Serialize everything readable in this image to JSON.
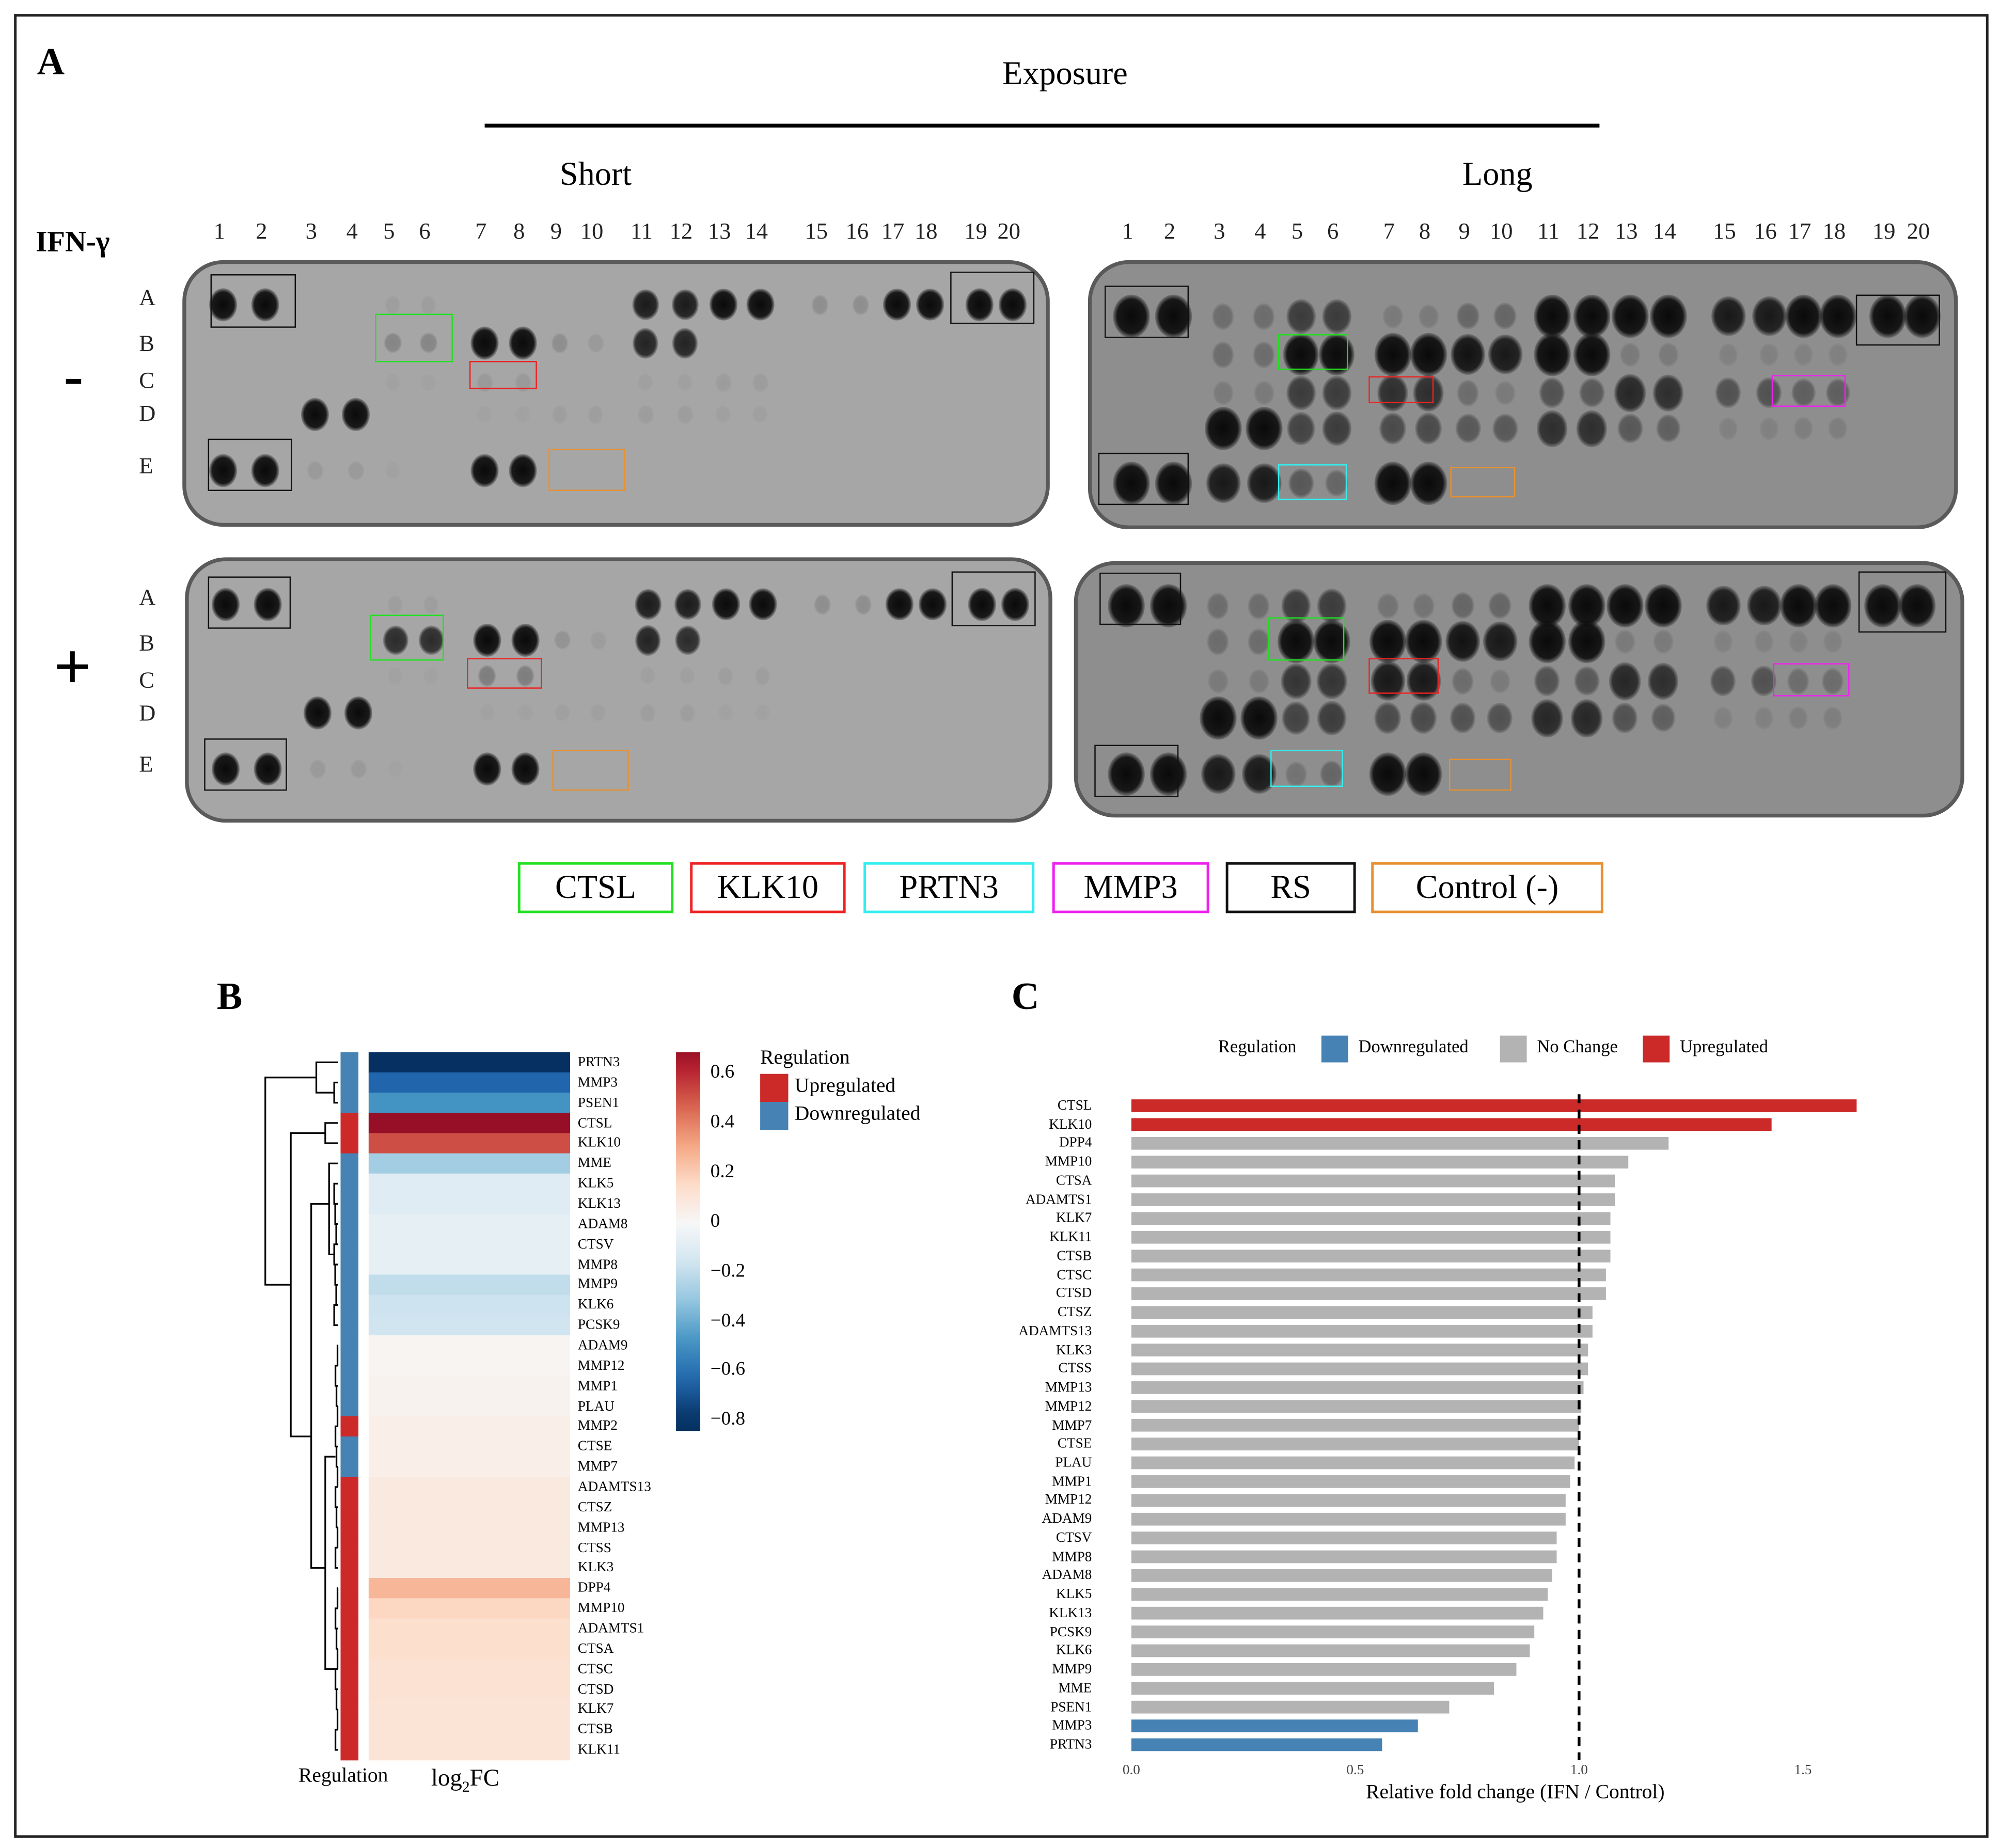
{
  "panel_a": {
    "letter": "A",
    "exposure_label": "Exposure",
    "short_label": "Short",
    "long_label": "Long",
    "ifn_label": "IFN-γ",
    "minus_label": "-",
    "plus_label": "+",
    "columns": [
      "1",
      "2",
      "3",
      "4",
      "5",
      "6",
      "7",
      "8",
      "9",
      "10",
      "11",
      "12",
      "13",
      "14",
      "15",
      "16",
      "17",
      "18",
      "19",
      "20"
    ],
    "rows": [
      "A",
      "B",
      "C",
      "D",
      "E"
    ],
    "legend": [
      {
        "label": "CTSL",
        "color": "#22e022"
      },
      {
        "label": "KLK10",
        "color": "#ee2222"
      },
      {
        "label": "PRTN3",
        "color": "#33eeee"
      },
      {
        "label": "MMP3",
        "color": "#ee22ee"
      },
      {
        "label": "RS",
        "color": "#111111"
      },
      {
        "label": "Control (-)",
        "color": "#e8902f"
      }
    ],
    "blots": [
      {
        "id": "short-minus",
        "spot_intensity": {
          "A": [
            1,
            1,
            0,
            0,
            0.05,
            0.05,
            0,
            0,
            0,
            0,
            0.85,
            0.85,
            0.95,
            0.95,
            0.15,
            0.15,
            0.95,
            0.95,
            1,
            1
          ],
          "B": [
            0,
            0,
            0,
            0,
            0.2,
            0.2,
            1,
            1,
            0.15,
            0.08,
            0.8,
            0.8,
            0,
            0,
            0,
            0,
            0,
            0,
            0,
            0
          ],
          "C": [
            0,
            0,
            0,
            0,
            0.03,
            0.03,
            0.08,
            0.08,
            0,
            0,
            0.04,
            0.04,
            0.06,
            0.06,
            0,
            0,
            0,
            0,
            0,
            0
          ],
          "D": [
            0,
            0,
            1,
            1,
            0,
            0,
            0.03,
            0.03,
            0.05,
            0.05,
            0.06,
            0.06,
            0.04,
            0.04,
            0,
            0,
            0,
            0,
            0,
            0
          ],
          "E": [
            1,
            1,
            0.08,
            0.08,
            0.03,
            0,
            1,
            1,
            0,
            0,
            0,
            0,
            0,
            0,
            0,
            0,
            0,
            0,
            0,
            0
          ]
        }
      },
      {
        "id": "long-minus",
        "spot_intensity": {
          "A": [
            1,
            1,
            0.25,
            0.25,
            0.6,
            0.6,
            0.15,
            0.15,
            0.3,
            0.3,
            1,
            1,
            1,
            1,
            0.85,
            0.85,
            1,
            1,
            1,
            1
          ],
          "B": [
            0,
            0,
            0.25,
            0.25,
            0.95,
            0.95,
            1,
            1,
            0.9,
            0.85,
            1,
            1,
            0.15,
            0.15,
            0.1,
            0.1,
            0.1,
            0.1,
            0,
            0
          ],
          "C": [
            0,
            0,
            0.15,
            0.15,
            0.6,
            0.6,
            0.7,
            0.7,
            0.25,
            0.15,
            0.45,
            0.4,
            0.75,
            0.7,
            0.45,
            0.45,
            0.35,
            0.35,
            0,
            0
          ],
          "D": [
            0,
            0,
            1,
            1,
            0.55,
            0.6,
            0.5,
            0.5,
            0.4,
            0.4,
            0.7,
            0.7,
            0.4,
            0.35,
            0.1,
            0.1,
            0.12,
            0.12,
            0,
            0
          ],
          "E": [
            1,
            1,
            0.85,
            0.85,
            0.4,
            0.3,
            1,
            1,
            0,
            0,
            0,
            0,
            0,
            0,
            0,
            0,
            0,
            0,
            0,
            0
          ]
        }
      },
      {
        "id": "short-plus",
        "spot_intensity": {
          "A": [
            1,
            1,
            0,
            0,
            0.05,
            0.05,
            0,
            0,
            0,
            0,
            0.85,
            0.85,
            0.95,
            0.95,
            0.15,
            0.15,
            0.95,
            0.95,
            1,
            1
          ],
          "B": [
            0,
            0,
            0,
            0,
            0.75,
            0.75,
            1,
            1,
            0.12,
            0.06,
            0.8,
            0.75,
            0,
            0,
            0,
            0,
            0,
            0,
            0,
            0
          ],
          "C": [
            0,
            0,
            0,
            0,
            0.03,
            0.03,
            0.25,
            0.25,
            0,
            0,
            0.04,
            0.04,
            0.05,
            0.05,
            0,
            0,
            0,
            0,
            0,
            0
          ],
          "D": [
            0,
            0,
            1,
            1,
            0,
            0,
            0.03,
            0.03,
            0.04,
            0.04,
            0.05,
            0.05,
            0.03,
            0.03,
            0,
            0,
            0,
            0,
            0,
            0
          ],
          "E": [
            1,
            1,
            0.08,
            0.08,
            0.02,
            0,
            1,
            1,
            0,
            0,
            0,
            0,
            0,
            0,
            0,
            0,
            0,
            0,
            0,
            0
          ]
        }
      },
      {
        "id": "long-plus",
        "spot_intensity": {
          "A": [
            1,
            1,
            0.25,
            0.25,
            0.6,
            0.6,
            0.2,
            0.2,
            0.3,
            0.3,
            1,
            1,
            1,
            1,
            0.85,
            0.85,
            1,
            1,
            1,
            1
          ],
          "B": [
            0,
            0,
            0.25,
            0.25,
            1,
            1,
            1,
            1,
            0.9,
            0.85,
            1,
            1,
            0.15,
            0.15,
            0.1,
            0.1,
            0.1,
            0.1,
            0,
            0
          ],
          "C": [
            0,
            0,
            0.15,
            0.15,
            0.65,
            0.65,
            0.85,
            0.85,
            0.25,
            0.15,
            0.45,
            0.4,
            0.75,
            0.7,
            0.45,
            0.45,
            0.25,
            0.25,
            0,
            0
          ],
          "D": [
            0,
            0,
            1,
            1,
            0.55,
            0.6,
            0.5,
            0.5,
            0.45,
            0.45,
            0.75,
            0.75,
            0.45,
            0.35,
            0.1,
            0.1,
            0.12,
            0.12,
            0,
            0
          ],
          "E": [
            1,
            1,
            0.85,
            0.85,
            0.2,
            0.3,
            1,
            1,
            0,
            0,
            0,
            0,
            0,
            0,
            0,
            0,
            0,
            0,
            0,
            0
          ]
        }
      }
    ]
  },
  "panel_b": {
    "letter": "B",
    "regulation_axis_label": "Regulation",
    "log2fc_label_main": "log",
    "log2fc_label_sub": "2",
    "log2fc_label_end": "FC",
    "legend_title": "Regulation",
    "legend_items": [
      {
        "label": "Upregulated",
        "color": "#cc2929"
      },
      {
        "label": "Downregulated",
        "color": "#4682b4"
      }
    ],
    "colorbar_ticks": [
      "0.6",
      "0.4",
      "0.2",
      "0",
      "−0.2",
      "−0.4",
      "−0.6",
      "−0.8"
    ]
  },
  "panel_c": {
    "letter": "C",
    "legend_title": "Regulation",
    "legend_items": [
      {
        "label": "Downregulated",
        "color": "#4682b4"
      },
      {
        "label": "No Change",
        "color": "#b3b3b3"
      },
      {
        "label": "Upregulated",
        "color": "#cc2929"
      }
    ]
  },
  "chart_data": [
    {
      "type": "heatmap",
      "xlabel": "log2FC",
      "color_range": [
        -0.84,
        0.69
      ],
      "colorscale": "RdBu",
      "rows": [
        {
          "gene": "PRTN3",
          "log2fc": -0.82,
          "regulation": "Downregulated"
        },
        {
          "gene": "MMP3",
          "log2fc": -0.64,
          "regulation": "Downregulated"
        },
        {
          "gene": "PSEN1",
          "log2fc": -0.48,
          "regulation": "Downregulated"
        },
        {
          "gene": "CTSL",
          "log2fc": 0.7,
          "regulation": "Upregulated"
        },
        {
          "gene": "KLK10",
          "log2fc": 0.52,
          "regulation": "Upregulated"
        },
        {
          "gene": "MME",
          "log2fc": -0.28,
          "regulation": "Downregulated"
        },
        {
          "gene": "KLK5",
          "log2fc": -0.1,
          "regulation": "Downregulated"
        },
        {
          "gene": "KLK13",
          "log2fc": -0.1,
          "regulation": "Downregulated"
        },
        {
          "gene": "ADAM8",
          "log2fc": -0.07,
          "regulation": "Downregulated"
        },
        {
          "gene": "CTSV",
          "log2fc": -0.07,
          "regulation": "Downregulated"
        },
        {
          "gene": "MMP8",
          "log2fc": -0.07,
          "regulation": "Downregulated"
        },
        {
          "gene": "MMP9",
          "log2fc": -0.2,
          "regulation": "Downregulated"
        },
        {
          "gene": "KLK6",
          "log2fc": -0.17,
          "regulation": "Downregulated"
        },
        {
          "gene": "PCSK9",
          "log2fc": -0.16,
          "regulation": "Downregulated"
        },
        {
          "gene": "ADAM9",
          "log2fc": 0.02,
          "regulation": "Downregulated"
        },
        {
          "gene": "MMP12",
          "log2fc": 0.02,
          "regulation": "Downregulated"
        },
        {
          "gene": "MMP1",
          "log2fc": 0.03,
          "regulation": "Downregulated"
        },
        {
          "gene": "PLAU",
          "log2fc": 0.03,
          "regulation": "Downregulated"
        },
        {
          "gene": "MMP2",
          "log2fc": 0.05,
          "regulation": "Upregulated"
        },
        {
          "gene": "CTSE",
          "log2fc": 0.05,
          "regulation": "Downregulated"
        },
        {
          "gene": "MMP7",
          "log2fc": 0.05,
          "regulation": "Downregulated"
        },
        {
          "gene": "ADAMTS13",
          "log2fc": 0.08,
          "regulation": "Upregulated"
        },
        {
          "gene": "CTSZ",
          "log2fc": 0.08,
          "regulation": "Upregulated"
        },
        {
          "gene": "MMP13",
          "log2fc": 0.08,
          "regulation": "Upregulated"
        },
        {
          "gene": "CTSS",
          "log2fc": 0.08,
          "regulation": "Upregulated"
        },
        {
          "gene": "KLK3",
          "log2fc": 0.08,
          "regulation": "Upregulated"
        },
        {
          "gene": "DPP4",
          "log2fc": 0.27,
          "regulation": "Upregulated"
        },
        {
          "gene": "MMP10",
          "log2fc": 0.17,
          "regulation": "Upregulated"
        },
        {
          "gene": "ADAMTS1",
          "log2fc": 0.14,
          "regulation": "Upregulated"
        },
        {
          "gene": "CTSA",
          "log2fc": 0.14,
          "regulation": "Upregulated"
        },
        {
          "gene": "CTSC",
          "log2fc": 0.12,
          "regulation": "Upregulated"
        },
        {
          "gene": "CTSD",
          "log2fc": 0.12,
          "regulation": "Upregulated"
        },
        {
          "gene": "KLK7",
          "log2fc": 0.11,
          "regulation": "Upregulated"
        },
        {
          "gene": "CTSB",
          "log2fc": 0.11,
          "regulation": "Upregulated"
        },
        {
          "gene": "KLK11",
          "log2fc": 0.11,
          "regulation": "Upregulated"
        }
      ]
    },
    {
      "type": "bar",
      "orientation": "horizontal",
      "xlabel": "Relative fold change (IFN / Control)",
      "ylabel": "",
      "xlim": [
        0,
        1.8
      ],
      "xticks": [
        "0.0",
        "0.5",
        "1.0",
        "1.5"
      ],
      "reference_line": 1.0,
      "grid": false,
      "legend_placement": "top",
      "categories": [
        "CTSL",
        "KLK10",
        "DPP4",
        "MMP10",
        "CTSA",
        "ADAMTS1",
        "KLK7",
        "KLK11",
        "CTSB",
        "CTSC",
        "CTSD",
        "CTSZ",
        "ADAMTS13",
        "KLK3",
        "CTSS",
        "MMP13",
        "MMP12",
        "MMP7",
        "CTSE",
        "PLAU",
        "MMP1",
        "MMP12",
        "ADAM9",
        "CTSV",
        "MMP8",
        "ADAM8",
        "KLK5",
        "KLK13",
        "PCSK9",
        "KLK6",
        "MMP9",
        "MME",
        "PSEN1",
        "MMP3",
        "PRTN3"
      ],
      "values": [
        1.62,
        1.43,
        1.2,
        1.11,
        1.08,
        1.08,
        1.07,
        1.07,
        1.07,
        1.06,
        1.06,
        1.03,
        1.03,
        1.02,
        1.02,
        1.01,
        1.005,
        1.0,
        1.0,
        0.99,
        0.98,
        0.97,
        0.97,
        0.95,
        0.95,
        0.94,
        0.93,
        0.92,
        0.9,
        0.89,
        0.86,
        0.81,
        0.71,
        0.64,
        0.56
      ],
      "regulation": [
        "Upregulated",
        "Upregulated",
        "No Change",
        "No Change",
        "No Change",
        "No Change",
        "No Change",
        "No Change",
        "No Change",
        "No Change",
        "No Change",
        "No Change",
        "No Change",
        "No Change",
        "No Change",
        "No Change",
        "No Change",
        "No Change",
        "No Change",
        "No Change",
        "No Change",
        "No Change",
        "No Change",
        "No Change",
        "No Change",
        "No Change",
        "No Change",
        "No Change",
        "No Change",
        "No Change",
        "No Change",
        "No Change",
        "No Change",
        "Downregulated",
        "Downregulated"
      ]
    }
  ]
}
